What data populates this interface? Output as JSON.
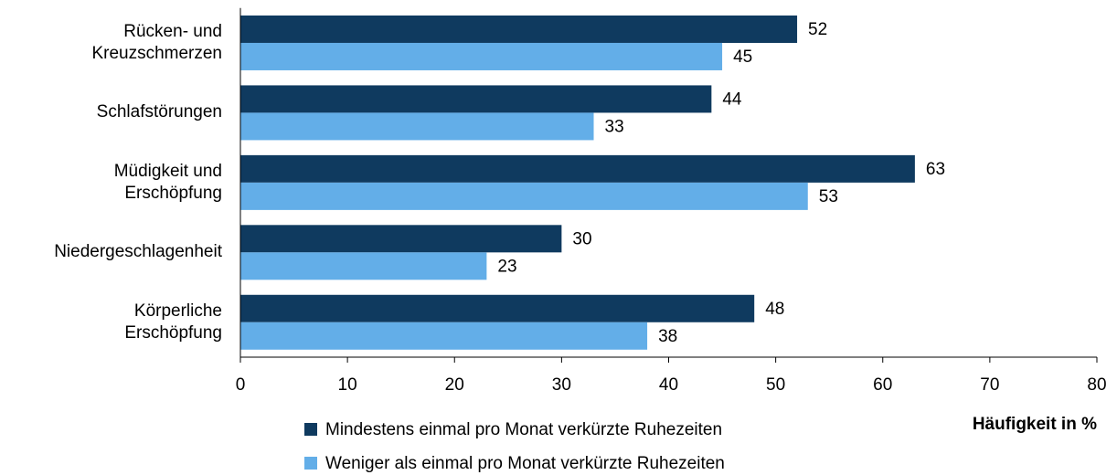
{
  "chart_data": {
    "type": "bar",
    "orientation": "horizontal",
    "categories": [
      "Rücken- und\nKreuzschmerzen",
      "Schlafstörungen",
      "Müdigkeit und\nErschöpfung",
      "Niedergeschlagenheit",
      "Körperliche\nErschöpfung"
    ],
    "series": [
      {
        "name": "Mindestens einmal pro Monat verkürzte Ruhezeiten",
        "color": "#0f3a5f",
        "values": [
          52,
          44,
          63,
          30,
          48
        ]
      },
      {
        "name": "Weniger als einmal pro Monat verkürzte Ruhezeiten",
        "color": "#63aee8",
        "values": [
          45,
          33,
          53,
          23,
          38
        ]
      }
    ],
    "x_label": "Häufigkeit in %",
    "xlim": [
      0,
      80
    ],
    "xticks": [
      0,
      10,
      20,
      30,
      40,
      50,
      60,
      70,
      80
    ],
    "grid": false,
    "legend": "bottom"
  }
}
